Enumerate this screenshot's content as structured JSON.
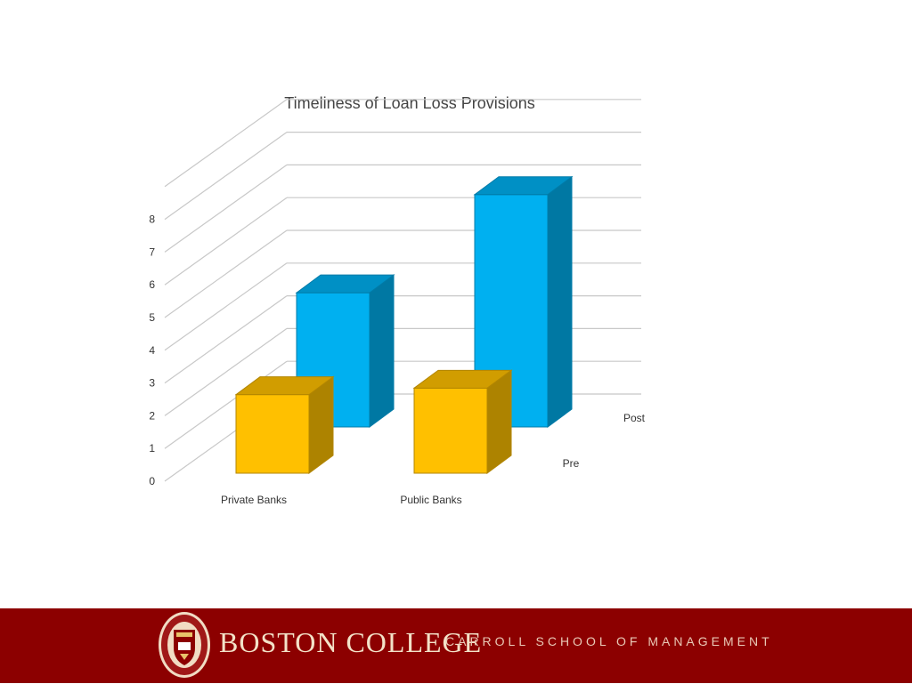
{
  "chart_data": {
    "type": "bar",
    "title": "Timeliness of Loan Loss Provisions",
    "categories": [
      "Private Banks",
      "Public Banks"
    ],
    "series": [
      {
        "name": "Pre",
        "values": [
          2.4,
          2.6
        ],
        "color": "#ffc000"
      },
      {
        "name": "Post",
        "values": [
          4.1,
          7.1
        ],
        "color": "#00b0f0"
      }
    ],
    "y_ticks": [
      "0",
      "1",
      "2",
      "3",
      "4",
      "5",
      "6",
      "7",
      "8"
    ],
    "ylim": [
      0,
      8
    ],
    "xlabel": "",
    "ylabel": "",
    "grid": true,
    "three_d": true
  },
  "footer": {
    "seal_icon": "boston-college-seal",
    "institution": "BOSTON COLLEGE",
    "school": "CARROLL SCHOOL OF MANAGEMENT",
    "background": "#8c0000"
  }
}
